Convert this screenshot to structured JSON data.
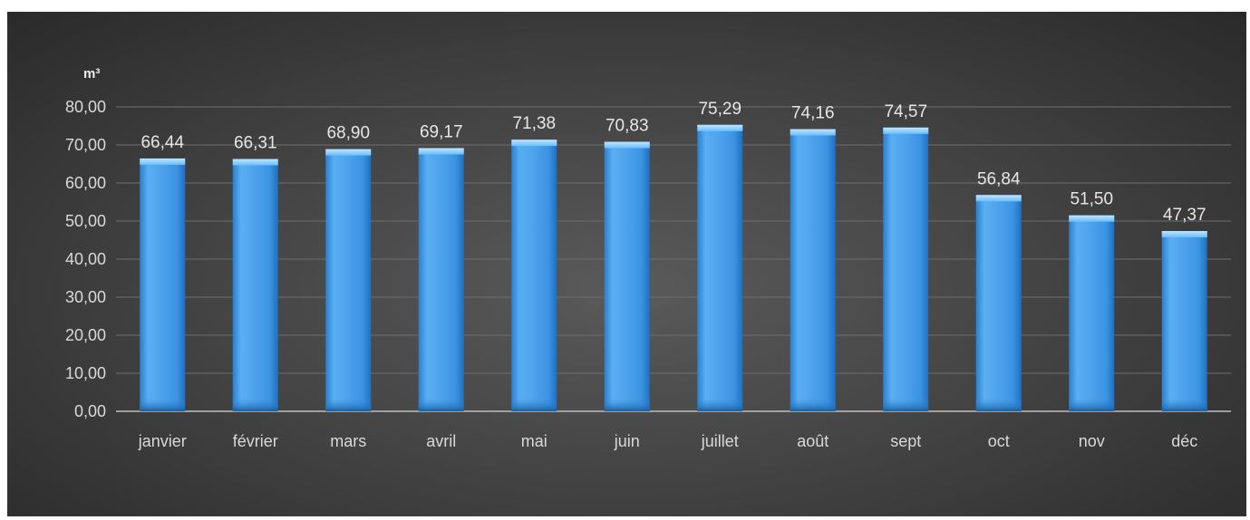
{
  "chart_data": {
    "type": "bar",
    "title": "",
    "xlabel": "",
    "ylabel": "m³",
    "ylim": [
      0,
      80
    ],
    "yticks": [
      0,
      10,
      20,
      30,
      40,
      50,
      60,
      70,
      80
    ],
    "ytick_labels": [
      "0,00",
      "10,00",
      "20,00",
      "30,00",
      "40,00",
      "50,00",
      "60,00",
      "70,00",
      "80,00"
    ],
    "grid": true,
    "legend": "none",
    "categories": [
      "janvier",
      "février",
      "mars",
      "avril",
      "mai",
      "juin",
      "juillet",
      "août",
      "sept",
      "oct",
      "nov",
      "déc"
    ],
    "values": [
      66.44,
      66.31,
      68.9,
      69.17,
      71.38,
      70.83,
      75.29,
      74.16,
      74.57,
      56.84,
      51.5,
      47.37
    ],
    "value_labels": [
      "66,44",
      "66,31",
      "68,90",
      "69,17",
      "71,38",
      "70,83",
      "75,29",
      "74,16",
      "74,57",
      "56,84",
      "51,50",
      "47,37"
    ],
    "colors": {
      "bar": "#4a9ee8",
      "bar_light": "#8fd0ff",
      "bar_dark": "#1f6fbf",
      "background": "#454545",
      "gridline": "#6e6e6e",
      "text": "#d9d9d9"
    }
  }
}
